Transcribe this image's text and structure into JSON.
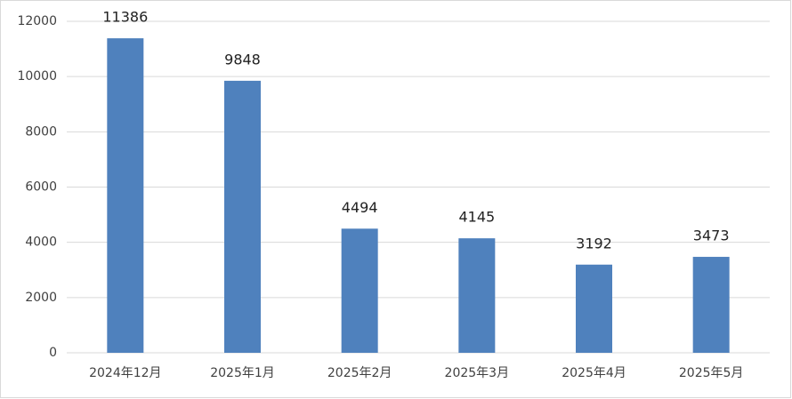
{
  "chart_data": {
    "type": "bar",
    "categories": [
      "2024年12月",
      "2025年1月",
      "2025年2月",
      "2025年3月",
      "2025年4月",
      "2025年5月"
    ],
    "values": [
      11386,
      9848,
      4494,
      4145,
      3192,
      3473
    ],
    "color": "#4f81bd",
    "ylim": [
      0,
      12000
    ],
    "yticks": [
      0,
      2000,
      4000,
      6000,
      8000,
      10000,
      12000
    ],
    "grid": true
  }
}
